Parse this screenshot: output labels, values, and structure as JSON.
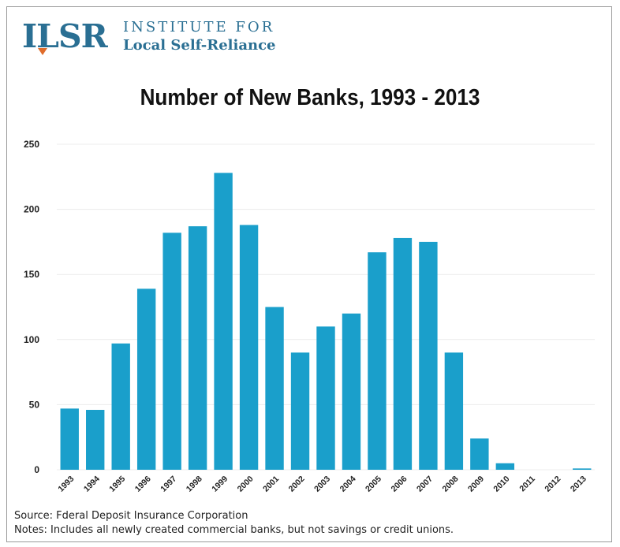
{
  "logo": {
    "mark": "ILSR",
    "line1": "INSTITUTE FOR",
    "line2": "Local Self-Reliance"
  },
  "footer": {
    "source": "Source: Fderal Deposit Insurance Corporation",
    "notes": "Notes: Includes all newly created commercial banks, but not savings or credit unions."
  },
  "colors": {
    "bar": "#1a9fcb",
    "brand": "#2a6f93",
    "accent": "#e06c2a"
  },
  "chart_data": {
    "type": "bar",
    "title": "Number of New Banks, 1993 - 2013",
    "xlabel": "",
    "ylabel": "",
    "categories": [
      "1993",
      "1994",
      "1995",
      "1996",
      "1997",
      "1998",
      "1999",
      "2000",
      "2001",
      "2002",
      "2003",
      "2004",
      "2005",
      "2006",
      "2007",
      "2008",
      "2009",
      "2010",
      "2011",
      "2012",
      "2013"
    ],
    "values": [
      47,
      46,
      97,
      139,
      182,
      187,
      228,
      188,
      125,
      90,
      110,
      120,
      167,
      178,
      175,
      90,
      24,
      5,
      0,
      0,
      1
    ],
    "ylim": [
      0,
      250
    ],
    "yticks": [
      0,
      50,
      100,
      150,
      200,
      250
    ],
    "grid": true,
    "legend": "none"
  }
}
